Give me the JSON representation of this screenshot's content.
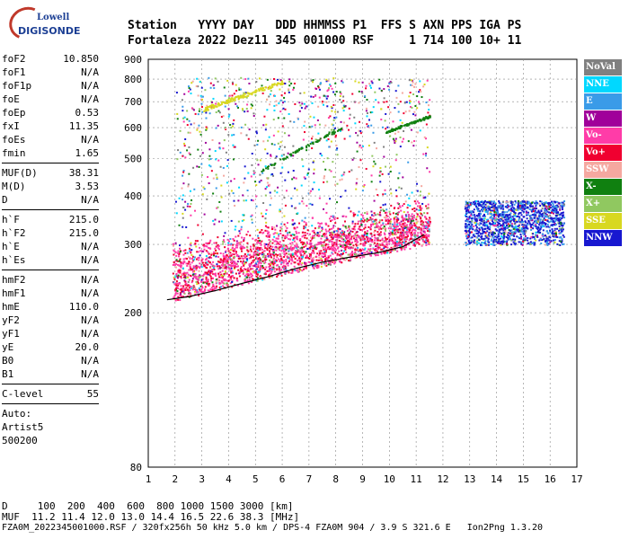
{
  "logo": {
    "brand": "Lowell",
    "product": "DIGISONDE"
  },
  "header": {
    "labels": [
      "Station",
      "YYYY",
      "DAY",
      "DDD",
      "HHMMSS",
      "P1",
      "FFS",
      "S",
      "AXN",
      "PPS",
      "IGA",
      "PS"
    ],
    "line1": "Station   YYYY DAY   DDD HHMMSS P1  FFS S AXN PPS IGA PS",
    "line2": "Fortaleza 2022 Dez11 345 001000 RSF     1 714 100 10+ 11"
  },
  "params": {
    "group1": [
      {
        "k": "foF2",
        "v": "10.850"
      },
      {
        "k": "foF1",
        "v": "N/A"
      },
      {
        "k": "foF1p",
        "v": "N/A"
      },
      {
        "k": "foE",
        "v": "N/A"
      },
      {
        "k": "foEp",
        "v": "0.53"
      },
      {
        "k": "fxI",
        "v": "11.35"
      },
      {
        "k": "foEs",
        "v": "N/A"
      },
      {
        "k": "fmin",
        "v": "1.65"
      }
    ],
    "group2": [
      {
        "k": "MUF(D)",
        "v": "38.31"
      },
      {
        "k": "M(D)",
        "v": "3.53"
      },
      {
        "k": "D",
        "v": "N/A"
      }
    ],
    "group3": [
      {
        "k": "h`F",
        "v": "215.0"
      },
      {
        "k": "h`F2",
        "v": "215.0"
      },
      {
        "k": "h`E",
        "v": "N/A"
      },
      {
        "k": "h`Es",
        "v": "N/A"
      }
    ],
    "group4": [
      {
        "k": "hmF2",
        "v": "N/A"
      },
      {
        "k": "hmF1",
        "v": "N/A"
      },
      {
        "k": "hmE",
        "v": "110.0"
      },
      {
        "k": "yF2",
        "v": "N/A"
      },
      {
        "k": "yF1",
        "v": "N/A"
      },
      {
        "k": "yE",
        "v": "20.0"
      },
      {
        "k": "B0",
        "v": "N/A"
      },
      {
        "k": "B1",
        "v": "N/A"
      }
    ],
    "group5": [
      {
        "k": "C-level",
        "v": "55"
      }
    ],
    "auto": [
      "Auto:",
      "Artist5",
      "500200"
    ]
  },
  "legend": [
    {
      "label": "NoVal",
      "color": "#808080"
    },
    {
      "label": "NNE",
      "color": "#00d8ff"
    },
    {
      "label": "E",
      "color": "#3a9be8"
    },
    {
      "label": "W",
      "color": "#a0009a"
    },
    {
      "label": "Vo-",
      "color": "#ff3ca8"
    },
    {
      "label": "Vo+",
      "color": "#f00030"
    },
    {
      "label": "SSW",
      "color": "#f5a8a0"
    },
    {
      "label": "X-",
      "color": "#108010"
    },
    {
      "label": "X+",
      "color": "#90c860"
    },
    {
      "label": "SSE",
      "color": "#d8d820"
    },
    {
      "label": "NNW",
      "color": "#1818d0"
    }
  ],
  "footer": {
    "line1": "D     100  200  400  600  800 1000 1500 3000 [km]",
    "line2": "MUF  11.2 11.4 12.0 13.0 14.4 16.5 22.6 38.3 [MHz]",
    "line3": "FZA0M_2022345001000.RSF / 320fx256h 50 kHz 5.0 km / DPS-4 FZA0M 904 / 3.9 S 321.6 E   Ion2Png 1.3.20"
  },
  "chart_data": {
    "type": "scatter",
    "title": "",
    "xlabel": "",
    "ylabel": "",
    "xlim": [
      1,
      17
    ],
    "ylim": [
      80,
      900
    ],
    "y_scale": "log",
    "x_ticks": [
      1,
      2,
      3,
      4,
      5,
      6,
      7,
      8,
      9,
      10,
      11,
      12,
      13,
      14,
      15,
      16,
      17
    ],
    "y_ticks": [
      80,
      200,
      300,
      400,
      500,
      600,
      700,
      800,
      900
    ],
    "grid": "dashed",
    "trace_line": [
      [
        1.7,
        216
      ],
      [
        2.5,
        220
      ],
      [
        3.5,
        228
      ],
      [
        4.5,
        238
      ],
      [
        5.5,
        248
      ],
      [
        6.5,
        260
      ],
      [
        7.5,
        270
      ],
      [
        8.5,
        278
      ],
      [
        9.5,
        285
      ],
      [
        10.5,
        296
      ],
      [
        11.3,
        318
      ]
    ]
  }
}
